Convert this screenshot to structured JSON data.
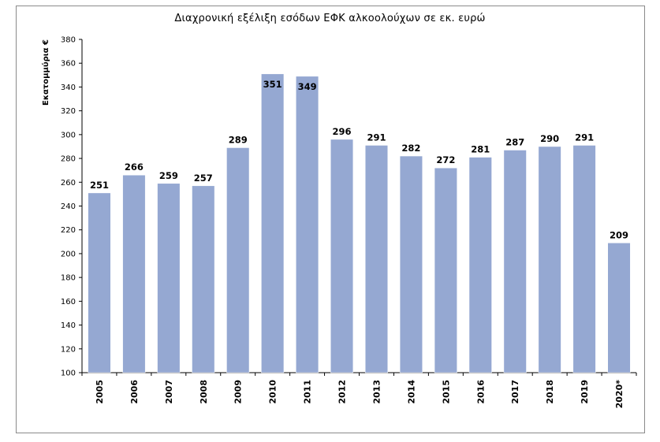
{
  "chart_data": {
    "type": "bar",
    "title": "Διαχρονική εξέλιξη εσόδων ΕΦΚ  αλκοολούχων σε εκ. ευρώ",
    "ylabel": "Εκατομμύρια €",
    "xlabel": "",
    "categories": [
      "2005",
      "2006",
      "2007",
      "2008",
      "2009",
      "2010",
      "2011",
      "2012",
      "2013",
      "2014",
      "2015",
      "2016",
      "2017",
      "2018",
      "2019",
      "2020*"
    ],
    "values": [
      251,
      266,
      259,
      257,
      289,
      351,
      349,
      296,
      291,
      282,
      272,
      281,
      287,
      290,
      291,
      209
    ],
    "ylim": [
      100,
      380
    ],
    "yticks": [
      100,
      120,
      140,
      160,
      180,
      200,
      220,
      240,
      260,
      280,
      300,
      320,
      340,
      360,
      380
    ],
    "grid": false,
    "legend": "none",
    "bar_color": "#95A8D2",
    "bar_edge_color": "#ffffff"
  }
}
